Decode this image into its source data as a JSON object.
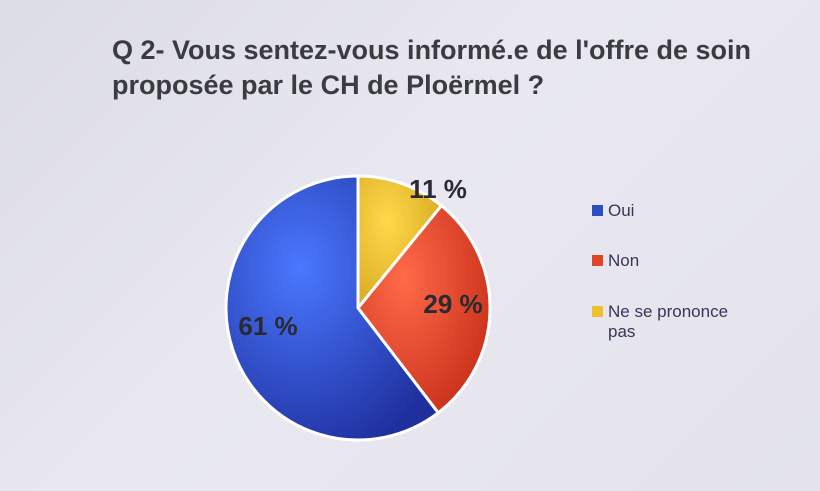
{
  "chart_data": {
    "type": "pie",
    "title": "Q 2- Vous sentez-vous informé.e de l'offre de soin proposée par le CH de Ploërmel ?",
    "categories": [
      "Oui",
      "Non",
      "Ne se prononce pas"
    ],
    "values": [
      61,
      29,
      11
    ],
    "data_labels": [
      "61 %",
      "29 %",
      "11 %"
    ],
    "colors": [
      "#2f4cc0",
      "#e0452a",
      "#ecc02f"
    ],
    "legend_position": "right"
  }
}
